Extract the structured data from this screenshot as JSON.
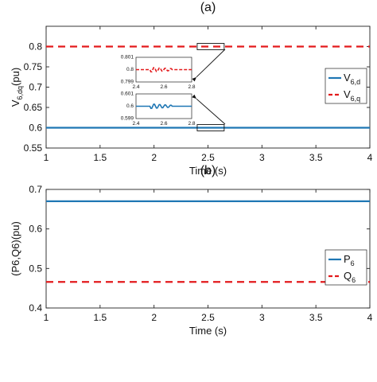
{
  "chart_data": [
    {
      "type": "line",
      "panel_label": "(a)",
      "xlabel": "Time (s)",
      "ylabel": "V6,dq(pu)",
      "ylabel_main": "V",
      "ylabel_sub": "6,dq",
      "ylabel_suffix": "(pu)",
      "xlim": [
        1,
        4
      ],
      "ylim": [
        0.55,
        0.85
      ],
      "xticks": [
        "1",
        "1.5",
        "2",
        "2.5",
        "3",
        "3.5",
        "4"
      ],
      "yticks": [
        "0.55",
        "0.6",
        "0.65",
        "0.7",
        "0.75",
        "0.8"
      ],
      "grid": false,
      "legend_placement": "right",
      "series": [
        {
          "name": "V6,d",
          "name_main": "V",
          "name_sub": "6,d",
          "style": "solid",
          "color": "#1f77b4",
          "x": [
            1,
            4
          ],
          "values": [
            0.6,
            0.6
          ]
        },
        {
          "name": "V6,q",
          "name_main": "V",
          "name_sub": "6,q",
          "style": "dashed",
          "color": "#e31a1c",
          "x": [
            1,
            4
          ],
          "values": [
            0.8,
            0.8
          ]
        }
      ],
      "insets": [
        {
          "series": "V6,q",
          "xlim": [
            2.4,
            2.8
          ],
          "ylim": [
            0.799,
            0.801
          ],
          "xticks": [
            "2.4",
            "2.6",
            "2.8"
          ],
          "yticks": [
            "0.801",
            "0.8",
            "0.799"
          ]
        },
        {
          "series": "V6,d",
          "xlim": [
            2.4,
            2.8
          ],
          "ylim": [
            0.599,
            0.601
          ],
          "xticks": [
            "2.4",
            "2.6",
            "2.8"
          ],
          "yticks": [
            "0.601",
            "0.6",
            "0.599"
          ]
        }
      ]
    },
    {
      "type": "line",
      "panel_label": "(b)",
      "xlabel": "Time (s)",
      "ylabel": "(P6,Q6)(pu)",
      "xlim": [
        1,
        4
      ],
      "ylim": [
        0.4,
        0.7
      ],
      "xticks": [
        "1",
        "1.5",
        "2",
        "2.5",
        "3",
        "3.5",
        "4"
      ],
      "yticks": [
        "0.4",
        "0.5",
        "0.6",
        "0.7"
      ],
      "grid": false,
      "legend_placement": "right",
      "series": [
        {
          "name": "P6",
          "name_main": "P",
          "name_sub": "6",
          "style": "solid",
          "color": "#1f77b4",
          "x": [
            1,
            4
          ],
          "values": [
            0.67,
            0.67
          ]
        },
        {
          "name": "Q6",
          "name_main": "Q",
          "name_sub": "6",
          "style": "dashed",
          "color": "#e31a1c",
          "x": [
            1,
            4
          ],
          "values": [
            0.466,
            0.466
          ]
        }
      ]
    }
  ]
}
